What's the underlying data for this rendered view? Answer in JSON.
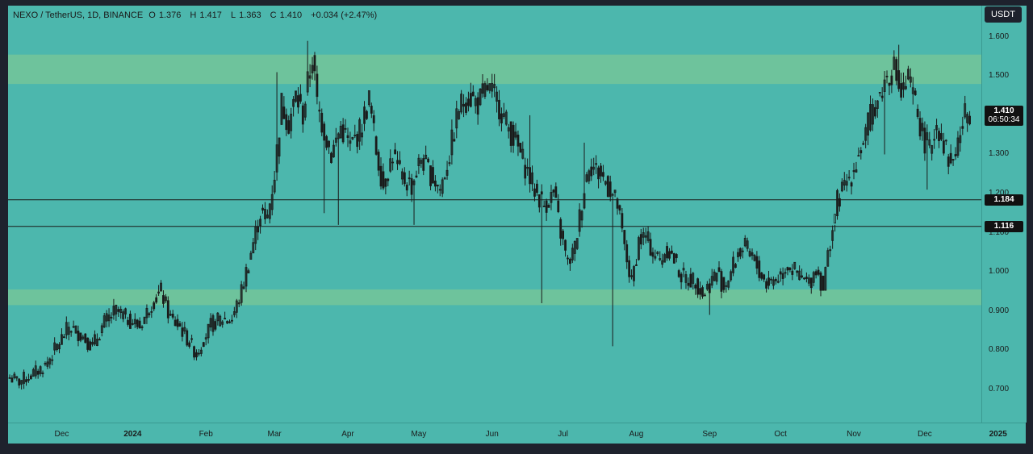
{
  "chart_data": {
    "type": "candlestick",
    "title": "NEXO / TetherUS, 1D, BINANCE",
    "ohlc": {
      "o_label": "O",
      "o": "1.376",
      "h_label": "H",
      "h": "1.417",
      "l_label": "L",
      "l": "1.363",
      "c_label": "C",
      "c": "1.410",
      "change": "+0.034 (+2.47%)"
    },
    "currency": "USDT",
    "ylim": [
      0.615,
      1.68
    ],
    "y_ticks": [
      "1.600",
      "1.500",
      "1.400",
      "1.300",
      "1.200",
      "1.100",
      "1.000",
      "0.900",
      "0.800",
      "0.700"
    ],
    "x_ticks": [
      {
        "label": "Dec",
        "bold": false,
        "day": 22
      },
      {
        "label": "2024",
        "bold": true,
        "day": 52
      },
      {
        "label": "Feb",
        "bold": false,
        "day": 83
      },
      {
        "label": "Mar",
        "bold": false,
        "day": 112
      },
      {
        "label": "Apr",
        "bold": false,
        "day": 143
      },
      {
        "label": "May",
        "bold": false,
        "day": 173
      },
      {
        "label": "Jun",
        "bold": false,
        "day": 204
      },
      {
        "label": "Jul",
        "bold": false,
        "day": 234
      },
      {
        "label": "Aug",
        "bold": false,
        "day": 265
      },
      {
        "label": "Sep",
        "bold": false,
        "day": 296
      },
      {
        "label": "Oct",
        "bold": false,
        "day": 326
      },
      {
        "label": "Nov",
        "bold": false,
        "day": 357
      },
      {
        "label": "Dec",
        "bold": false,
        "day": 387
      },
      {
        "label": "2025",
        "bold": true,
        "day": 418
      }
    ],
    "zones": [
      {
        "from": 1.48,
        "to": 1.555,
        "color": "#6ec39c"
      },
      {
        "from": 0.915,
        "to": 0.955,
        "color": "#6ec39c"
      }
    ],
    "hlines": [
      {
        "value": 1.184,
        "label": "1.184"
      },
      {
        "value": 1.116,
        "label": "1.116"
      }
    ],
    "current": {
      "value": 1.41,
      "label": "1.410",
      "countdown": "06:50:34"
    },
    "candle_color": "#1a1a1a",
    "key_closes": [
      [
        0,
        0.73
      ],
      [
        4,
        0.72
      ],
      [
        10,
        0.74
      ],
      [
        15,
        0.76
      ],
      [
        20,
        0.81
      ],
      [
        25,
        0.86
      ],
      [
        30,
        0.84
      ],
      [
        35,
        0.81
      ],
      [
        40,
        0.87
      ],
      [
        45,
        0.9
      ],
      [
        50,
        0.88
      ],
      [
        55,
        0.86
      ],
      [
        60,
        0.92
      ],
      [
        64,
        0.95
      ],
      [
        68,
        0.88
      ],
      [
        72,
        0.86
      ],
      [
        76,
        0.82
      ],
      [
        79,
        0.79
      ],
      [
        82,
        0.83
      ],
      [
        86,
        0.87
      ],
      [
        90,
        0.88
      ],
      [
        94,
        0.88
      ],
      [
        98,
        0.95
      ],
      [
        102,
        1.05
      ],
      [
        106,
        1.15
      ],
      [
        109,
        1.14
      ],
      [
        112,
        1.25
      ],
      [
        115,
        1.43
      ],
      [
        118,
        1.38
      ],
      [
        121,
        1.45
      ],
      [
        124,
        1.4
      ],
      [
        126,
        1.48
      ],
      [
        128,
        1.55
      ],
      [
        130,
        1.43
      ],
      [
        133,
        1.36
      ],
      [
        136,
        1.3
      ],
      [
        140,
        1.37
      ],
      [
        144,
        1.32
      ],
      [
        148,
        1.36
      ],
      [
        152,
        1.44
      ],
      [
        155,
        1.31
      ],
      [
        158,
        1.22
      ],
      [
        162,
        1.3
      ],
      [
        166,
        1.24
      ],
      [
        170,
        1.22
      ],
      [
        174,
        1.29
      ],
      [
        178,
        1.25
      ],
      [
        182,
        1.21
      ],
      [
        186,
        1.3
      ],
      [
        190,
        1.42
      ],
      [
        194,
        1.45
      ],
      [
        198,
        1.43
      ],
      [
        202,
        1.47
      ],
      [
        206,
        1.44
      ],
      [
        210,
        1.38
      ],
      [
        214,
        1.33
      ],
      [
        218,
        1.27
      ],
      [
        222,
        1.21
      ],
      [
        226,
        1.17
      ],
      [
        230,
        1.2
      ],
      [
        233,
        1.1
      ],
      [
        236,
        1.02
      ],
      [
        239,
        1.06
      ],
      [
        242,
        1.18
      ],
      [
        245,
        1.28
      ],
      [
        248,
        1.26
      ],
      [
        251,
        1.24
      ],
      [
        254,
        1.21
      ],
      [
        257,
        1.17
      ],
      [
        260,
        1.06
      ],
      [
        263,
        0.97
      ],
      [
        266,
        1.08
      ],
      [
        269,
        1.09
      ],
      [
        272,
        1.05
      ],
      [
        275,
        1.03
      ],
      [
        278,
        1.06
      ],
      [
        281,
        1.03
      ],
      [
        284,
        0.99
      ],
      [
        287,
        0.98
      ],
      [
        290,
        0.98
      ],
      [
        293,
        0.94
      ],
      [
        296,
        0.97
      ],
      [
        299,
        1.0
      ],
      [
        302,
        0.96
      ],
      [
        305,
        1.0
      ],
      [
        308,
        1.05
      ],
      [
        311,
        1.06
      ],
      [
        314,
        1.04
      ],
      [
        317,
        1.0
      ],
      [
        320,
        0.97
      ],
      [
        323,
        0.98
      ],
      [
        326,
        0.99
      ],
      [
        329,
        1.02
      ],
      [
        332,
        1.0
      ],
      [
        335,
        0.98
      ],
      [
        338,
        0.97
      ],
      [
        341,
        1.01
      ],
      [
        344,
        0.96
      ],
      [
        347,
        1.08
      ],
      [
        350,
        1.18
      ],
      [
        353,
        1.22
      ],
      [
        356,
        1.25
      ],
      [
        359,
        1.3
      ],
      [
        362,
        1.35
      ],
      [
        365,
        1.42
      ],
      [
        368,
        1.45
      ],
      [
        371,
        1.5
      ],
      [
        374,
        1.52
      ],
      [
        377,
        1.45
      ],
      [
        380,
        1.49
      ],
      [
        383,
        1.43
      ],
      [
        386,
        1.35
      ],
      [
        389,
        1.31
      ],
      [
        392,
        1.38
      ],
      [
        395,
        1.33
      ],
      [
        398,
        1.27
      ],
      [
        401,
        1.33
      ],
      [
        404,
        1.4
      ],
      [
        406,
        1.41
      ]
    ],
    "spikes": [
      {
        "day": 126,
        "high": 1.59
      },
      {
        "day": 133,
        "low": 1.15
      },
      {
        "day": 139,
        "low": 1.12
      },
      {
        "day": 171,
        "low": 1.12
      },
      {
        "day": 225,
        "low": 0.92
      },
      {
        "day": 255,
        "low": 0.81
      },
      {
        "day": 243,
        "high": 1.33
      },
      {
        "day": 296,
        "low": 0.89
      },
      {
        "day": 349,
        "high": 1.12
      },
      {
        "day": 376,
        "high": 1.58
      },
      {
        "day": 370,
        "low": 1.3
      },
      {
        "day": 388,
        "low": 1.21
      },
      {
        "day": 113,
        "high": 1.51
      },
      {
        "day": 220,
        "high": 1.4
      }
    ]
  }
}
